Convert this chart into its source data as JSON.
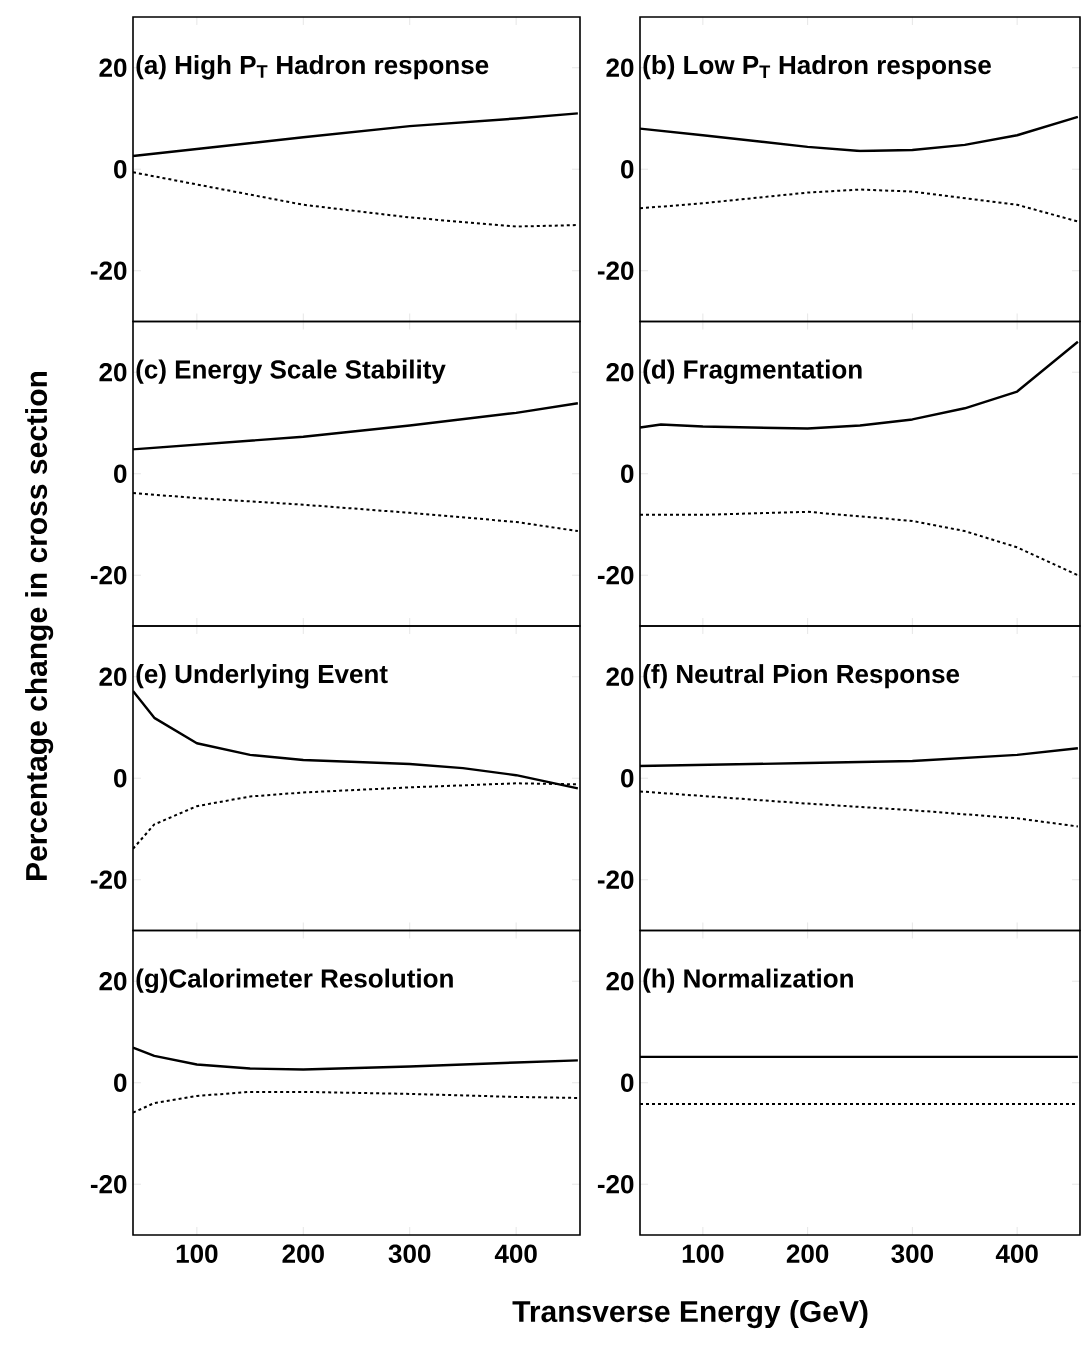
{
  "chart_data": [
    {
      "type": "line",
      "title": "(a) High P$_{T}$ Hadron response",
      "xlim": [
        40,
        460
      ],
      "ylim": [
        -30,
        30
      ],
      "xticks": [
        100,
        200,
        300,
        400
      ],
      "yticks": [
        -20,
        0,
        20
      ],
      "tick_labels": "y",
      "series": [
        {
          "color": "#000000",
          "line_style": "solid",
          "x": [
            40,
            100,
            200,
            300,
            400,
            458
          ],
          "values": [
            2.6,
            4,
            6.3,
            8.5,
            10,
            11
          ]
        },
        {
          "color": "#000000",
          "line_style": "dashed",
          "x": [
            40,
            100,
            200,
            300,
            400,
            458
          ],
          "values": [
            -0.6,
            -3,
            -7,
            -9.5,
            -11.3,
            -11
          ]
        }
      ]
    },
    {
      "type": "line",
      "title": "(b) Low P$_{T}$ Hadron response",
      "xlim": [
        40,
        460
      ],
      "ylim": [
        -30,
        30
      ],
      "xticks": [
        100,
        200,
        300,
        400
      ],
      "yticks": [
        -20,
        0,
        20
      ],
      "tick_labels": "y",
      "series": [
        {
          "color": "#000000",
          "line_style": "solid",
          "x": [
            40,
            100,
            200,
            250,
            300,
            350,
            400,
            458
          ],
          "values": [
            8,
            6.7,
            4.4,
            3.6,
            3.8,
            4.8,
            6.7,
            10.3
          ]
        },
        {
          "color": "#000000",
          "line_style": "dashed",
          "x": [
            40,
            100,
            200,
            250,
            300,
            400,
            458
          ],
          "values": [
            -7.7,
            -6.7,
            -4.6,
            -4,
            -4.4,
            -7,
            -10.3
          ]
        }
      ]
    },
    {
      "type": "line",
      "title": "(c) Energy Scale Stability",
      "xlim": [
        40,
        460
      ],
      "ylim": [
        -30,
        30
      ],
      "xticks": [
        100,
        200,
        300,
        400
      ],
      "yticks": [
        -20,
        0,
        20
      ],
      "tick_labels": "y",
      "series": [
        {
          "color": "#000000",
          "line_style": "solid",
          "x": [
            40,
            200,
            300,
            400,
            458
          ],
          "values": [
            4.8,
            7.3,
            9.5,
            12,
            13.9
          ]
        },
        {
          "color": "#000000",
          "line_style": "dashed",
          "x": [
            40,
            100,
            200,
            300,
            400,
            458
          ],
          "values": [
            -3.8,
            -4.8,
            -6.1,
            -7.7,
            -9.5,
            -11.3
          ]
        }
      ]
    },
    {
      "type": "line",
      "title": "(d) Fragmentation",
      "xlim": [
        40,
        460
      ],
      "ylim": [
        -30,
        30
      ],
      "xticks": [
        100,
        200,
        300,
        400
      ],
      "yticks": [
        -20,
        0,
        20
      ],
      "tick_labels": "y",
      "series": [
        {
          "color": "#000000",
          "line_style": "solid",
          "x": [
            40,
            60,
            100,
            200,
            250,
            300,
            350,
            400,
            458
          ],
          "values": [
            9.1,
            9.7,
            9.3,
            8.9,
            9.5,
            10.7,
            12.9,
            16.2,
            26
          ]
        },
        {
          "color": "#000000",
          "line_style": "dashed",
          "x": [
            40,
            100,
            200,
            300,
            350,
            400,
            458
          ],
          "values": [
            -8.1,
            -8.1,
            -7.5,
            -9.3,
            -11.3,
            -14.5,
            -20
          ]
        }
      ]
    },
    {
      "type": "line",
      "title": "(e) Underlying Event",
      "ylabel": "Percentage change in cross section",
      "xlim": [
        40,
        460
      ],
      "ylim": [
        -30,
        30
      ],
      "xticks": [
        100,
        200,
        300,
        400
      ],
      "yticks": [
        -20,
        0,
        20
      ],
      "tick_labels": "y",
      "series": [
        {
          "color": "#000000",
          "line_style": "solid",
          "x": [
            40,
            60,
            100,
            150,
            200,
            300,
            350,
            400,
            458
          ],
          "values": [
            17.2,
            11.9,
            6.9,
            4.6,
            3.6,
            2.8,
            2,
            0.6,
            -2
          ]
        },
        {
          "color": "#000000",
          "line_style": "dashed",
          "x": [
            40,
            60,
            100,
            150,
            200,
            300,
            400,
            458
          ],
          "values": [
            -13.9,
            -9.1,
            -5.5,
            -3.6,
            -2.8,
            -1.8,
            -1,
            -1.2
          ]
        }
      ]
    },
    {
      "type": "line",
      "title": "(f) Neutral Pion Response",
      "xlim": [
        40,
        460
      ],
      "ylim": [
        -30,
        30
      ],
      "xticks": [
        100,
        200,
        300,
        400
      ],
      "yticks": [
        -20,
        0,
        20
      ],
      "tick_labels": "y",
      "series": [
        {
          "color": "#000000",
          "line_style": "solid",
          "x": [
            40,
            200,
            300,
            400,
            458
          ],
          "values": [
            2.4,
            3,
            3.4,
            4.6,
            5.9
          ]
        },
        {
          "color": "#000000",
          "line_style": "dashed",
          "x": [
            40,
            200,
            300,
            400,
            458
          ],
          "values": [
            -2.6,
            -5,
            -6.3,
            -7.9,
            -9.5
          ]
        }
      ]
    },
    {
      "type": "line",
      "title": "(g)Calorimeter Resolution",
      "xlim": [
        40,
        460
      ],
      "ylim": [
        -30,
        30
      ],
      "xticks": [
        100,
        200,
        300,
        400
      ],
      "yticks": [
        -20,
        0,
        20
      ],
      "series": [
        {
          "color": "#000000",
          "line_style": "solid",
          "x": [
            40,
            60,
            100,
            150,
            200,
            300,
            400,
            458
          ],
          "values": [
            6.9,
            5.3,
            3.6,
            2.8,
            2.6,
            3.2,
            4,
            4.4
          ]
        },
        {
          "color": "#000000",
          "line_style": "dashed",
          "x": [
            40,
            60,
            100,
            150,
            200,
            300,
            400,
            458
          ],
          "values": [
            -5.9,
            -4,
            -2.6,
            -1.8,
            -1.8,
            -2.2,
            -2.8,
            -3
          ]
        }
      ]
    },
    {
      "type": "line",
      "title": "(h) Normalization",
      "xlabel": "Transverse Energy (GeV)",
      "xlim": [
        40,
        460
      ],
      "ylim": [
        -30,
        30
      ],
      "xticks": [
        100,
        200,
        300,
        400
      ],
      "yticks": [
        -20,
        0,
        20
      ],
      "series": [
        {
          "color": "#000000",
          "line_style": "solid",
          "x": [
            40,
            458
          ],
          "values": [
            5.1,
            5.1
          ]
        },
        {
          "color": "#000000",
          "line_style": "dashed",
          "x": [
            40,
            458
          ],
          "values": [
            -4.2,
            -4.2
          ]
        }
      ]
    }
  ]
}
